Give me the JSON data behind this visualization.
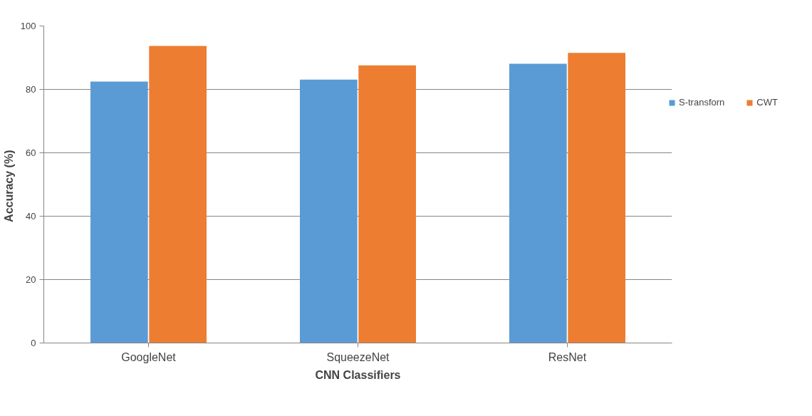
{
  "chart_data": {
    "type": "bar",
    "categories": [
      "GoogleNet",
      "SqueezeNet",
      "ResNet"
    ],
    "series": [
      {
        "name": "S-transforn",
        "color": "#5b9bd5",
        "values": [
          82.5,
          83.1,
          88.1
        ]
      },
      {
        "name": "CWT",
        "color": "#ed7d31",
        "values": [
          93.7,
          87.6,
          91.5
        ]
      }
    ],
    "xlabel": "CNN Classifiers",
    "ylabel": "Accuracy  (%)",
    "ylim": [
      0,
      100
    ],
    "yticks": [
      0,
      20,
      40,
      60,
      80,
      100
    ],
    "grid": "y",
    "legend": "right"
  }
}
